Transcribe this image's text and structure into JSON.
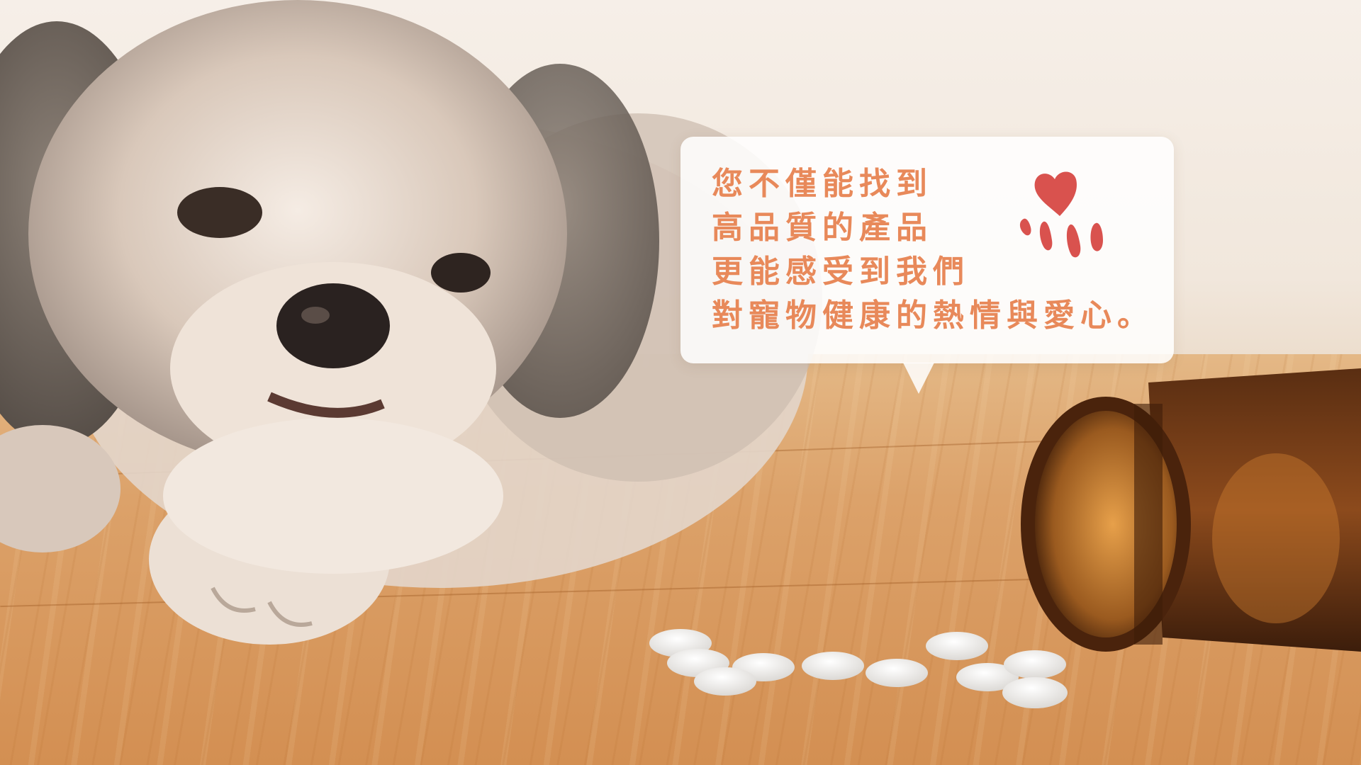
{
  "bubble": {
    "lines": [
      "您不僅能找到",
      "高品質的產品",
      "更能感受到我們",
      "對寵物健康的熱情與愛心。"
    ]
  },
  "icons": {
    "paw": "heart-paw-icon"
  },
  "colors": {
    "text_accent": "#e8895a",
    "paw_red": "#d9524e",
    "bubble_bg": "#ffffff"
  }
}
